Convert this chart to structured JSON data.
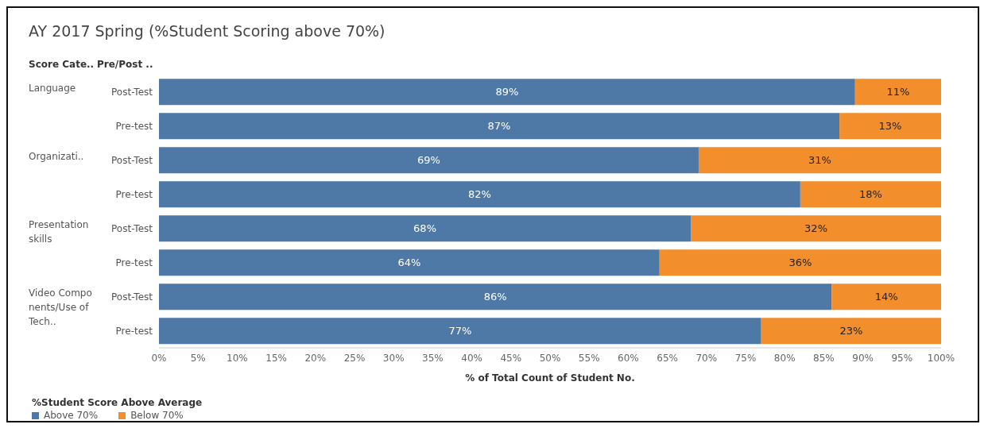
{
  "chart_data": {
    "type": "bar",
    "orientation": "horizontal",
    "stacked": true,
    "title": "AY 2017 Spring (%Student Scoring above 70%)",
    "xlabel": "% of Total Count of Student No.",
    "legend_title": "%Student Score Above Average",
    "legend": "bottom left",
    "categories": [
      "Post-Test",
      "Pre-test",
      "Post-Test",
      "Pre-test",
      "Post-Test",
      "Pre-test",
      "Post-Test",
      "Pre-test"
    ],
    "annotations": [
      "Score Cate..",
      "Pre/Post ..",
      "Language",
      "Organizati..",
      "Presentation skills",
      "Video Components/Use of Tech.."
    ],
    "series": [
      {
        "name": "Above 70%",
        "color": "#4e79a7",
        "values": [
          89,
          87,
          69,
          82,
          68,
          64,
          86,
          77
        ],
        "value_labels": [
          "89%",
          "87%",
          "69%",
          "82%",
          "68%",
          "64%",
          "86%",
          "77%"
        ]
      },
      {
        "name": "Below 70%",
        "color": "#f28e2b",
        "values": [
          11,
          13,
          31,
          18,
          32,
          36,
          14,
          23
        ],
        "value_labels": [
          "11%",
          "13%",
          "31%",
          "18%",
          "32%",
          "36%",
          "14%",
          "23%"
        ]
      }
    ],
    "xlim": [
      0,
      100
    ],
    "xticks": [
      {
        "value": 0,
        "label": "0%"
      },
      {
        "value": 5,
        "label": "5%"
      },
      {
        "value": 10,
        "label": "10%"
      },
      {
        "value": 15,
        "label": "15%"
      },
      {
        "value": 20,
        "label": "20%"
      },
      {
        "value": 25,
        "label": "25%"
      },
      {
        "value": 30,
        "label": "30%"
      },
      {
        "value": 35,
        "label": "35%"
      },
      {
        "value": 40,
        "label": "40%"
      },
      {
        "value": 45,
        "label": "45%"
      },
      {
        "value": 50,
        "label": "50%"
      },
      {
        "value": 55,
        "label": "55%"
      },
      {
        "value": 60,
        "label": "60%"
      },
      {
        "value": 65,
        "label": "65%"
      },
      {
        "value": 70,
        "label": "70%"
      },
      {
        "value": 75,
        "label": "75%"
      },
      {
        "value": 80,
        "label": "80%"
      },
      {
        "value": 85,
        "label": "85%"
      },
      {
        "value": 90,
        "label": "90%"
      },
      {
        "value": 95,
        "label": "95%"
      },
      {
        "value": 100,
        "label": "100%"
      }
    ],
    "grid": false
  }
}
